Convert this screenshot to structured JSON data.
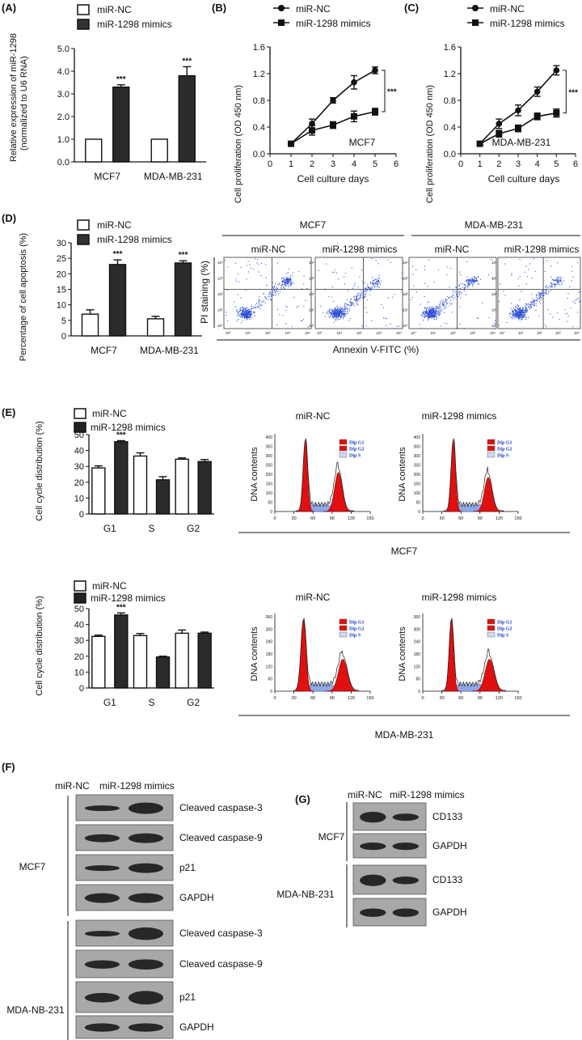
{
  "panels": {
    "A": {
      "label": "(A)"
    },
    "B": {
      "label": "(B)"
    },
    "C": {
      "label": "(C)"
    },
    "D": {
      "label": "(D)"
    },
    "E": {
      "label": "(E)"
    },
    "F": {
      "label": "(F)"
    },
    "G": {
      "label": "(G)"
    }
  },
  "legend": {
    "nc": "miR-NC",
    "mimics": "miR-1298 mimics"
  },
  "sig": "***",
  "flow": {
    "groups": [
      "MCF7",
      "MDA-MB-231"
    ],
    "conditions": [
      "miR-NC",
      "miR-1298 mimics",
      "miR-NC",
      "miR-1298 mimics"
    ],
    "ylabel": "PI staining (%)",
    "xlabel": "Annexin V-FITC (%)",
    "tick_labels": [
      "10°",
      "10¹",
      "10²",
      "10³",
      "10⁴"
    ]
  },
  "dna": {
    "ylabel": "DNA contents",
    "legend": [
      "Dip G1",
      "Dip G2",
      "Dip S"
    ],
    "titles": [
      "miR-NC",
      "miR-1298 mimics",
      "miR-NC",
      "miR-1298 mimics"
    ],
    "groups": [
      "MCF7",
      "MDA-MB-231"
    ],
    "xticks": [
      "0",
      "30",
      "60",
      "90",
      "120",
      "150"
    ],
    "yticks_mcf7": [
      "0",
      "50",
      "100",
      "150",
      "200",
      "250",
      "300",
      "350",
      "400"
    ],
    "yticks_mda": [
      "0",
      "60",
      "120",
      "180",
      "240",
      "300",
      "360"
    ]
  },
  "westernF": {
    "header": [
      "miR-NC",
      "miR-1298 mimics"
    ],
    "groups": [
      "MCF7",
      "MDA-NB-231"
    ],
    "bands": [
      "Cleaved caspase-3",
      "Cleaved caspase-9",
      "p21",
      "GAPDH",
      "Cleaved caspase-3",
      "Cleaved caspase-9",
      "p21",
      "GAPDH"
    ]
  },
  "westernG": {
    "header": [
      "miR-NC",
      "miR-1298 mimics"
    ],
    "groups": [
      "MCF7",
      "MDA-NB-231"
    ],
    "bands": [
      "CD133",
      "GAPDH",
      "CD133",
      "GAPDH"
    ]
  },
  "chart_data": [
    {
      "id": "A",
      "type": "bar",
      "ylabel": "Relative expression of miR-1298 (normalized to U6 RNA)",
      "ylabel_lines": [
        "Relative expression of miR-1298",
        "(normalized to U6 RNA)"
      ],
      "categories": [
        "MCF7",
        "MDA-MB-231"
      ],
      "series": [
        {
          "name": "miR-NC",
          "values": [
            1.0,
            1.0
          ],
          "errors": [
            0,
            0
          ]
        },
        {
          "name": "miR-1298 mimics",
          "values": [
            3.3,
            3.8
          ],
          "errors": [
            0.1,
            0.4
          ]
        }
      ],
      "ylim": [
        0,
        5
      ],
      "yticks": [
        "0.0",
        "1.0",
        "2.0",
        "3.0",
        "4.0",
        "5.0"
      ],
      "annotations": [
        "***",
        "***"
      ]
    },
    {
      "id": "B",
      "type": "line",
      "ylabel": "Cell proliferation (OD 450 nm)",
      "xlabel": "Cell culture days",
      "x": [
        1,
        2,
        3,
        4,
        5
      ],
      "series": [
        {
          "name": "miR-NC",
          "values": [
            0.15,
            0.45,
            0.8,
            1.07,
            1.25
          ],
          "errors": [
            0.02,
            0.07,
            0.04,
            0.1,
            0.05
          ]
        },
        {
          "name": "miR-1298 mimics",
          "values": [
            0.15,
            0.35,
            0.43,
            0.56,
            0.63
          ],
          "errors": [
            0.02,
            0.07,
            0.05,
            0.08,
            0.05
          ]
        }
      ],
      "xlim": [
        0,
        6
      ],
      "ylim": [
        0,
        1.6
      ],
      "xticks": [
        "0",
        "1",
        "2",
        "3",
        "4",
        "5",
        "6"
      ],
      "yticks": [
        "0.0",
        "0.4",
        "0.8",
        "1.2",
        "1.6"
      ],
      "annotation": "MCF7",
      "sig": "***"
    },
    {
      "id": "C",
      "type": "line",
      "ylabel": "Cell proliferation (OD 450 nm)",
      "xlabel": "Cell culture days",
      "x": [
        1,
        2,
        3,
        4,
        5
      ],
      "series": [
        {
          "name": "miR-NC",
          "values": [
            0.15,
            0.45,
            0.65,
            0.93,
            1.25
          ],
          "errors": [
            0.02,
            0.07,
            0.08,
            0.07,
            0.07
          ]
        },
        {
          "name": "miR-1298 mimics",
          "values": [
            0.15,
            0.3,
            0.38,
            0.56,
            0.61
          ],
          "errors": [
            0.02,
            0.05,
            0.05,
            0.05,
            0.06
          ]
        }
      ],
      "xlim": [
        0,
        6
      ],
      "ylim": [
        0,
        1.6
      ],
      "xticks": [
        "0",
        "1",
        "2",
        "3",
        "4",
        "5",
        "6"
      ],
      "yticks": [
        "0.0",
        "0.4",
        "0.8",
        "1.2",
        "1.6"
      ],
      "annotation": "MDA-MB-231",
      "sig": "***"
    },
    {
      "id": "D",
      "type": "bar",
      "ylabel": "Percentage of cell apoptosis (%)",
      "categories": [
        "MCF7",
        "MDA-MB-231"
      ],
      "series": [
        {
          "name": "miR-NC",
          "values": [
            7.0,
            5.5
          ],
          "errors": [
            1.4,
            0.8
          ]
        },
        {
          "name": "miR-1298 mimics",
          "values": [
            23.0,
            23.5
          ],
          "errors": [
            1.5,
            0.7
          ]
        }
      ],
      "ylim": [
        0,
        30
      ],
      "yticks": [
        "0",
        "5",
        "10",
        "15",
        "20",
        "25",
        "30"
      ],
      "annotations": [
        "***",
        "***"
      ]
    },
    {
      "id": "E-MCF7",
      "type": "bar",
      "ylabel": "Cell cycle distribution (%)",
      "categories": [
        "G1",
        "S",
        "G2"
      ],
      "series": [
        {
          "name": "miR-NC",
          "values": [
            29,
            36.5,
            34.5
          ],
          "errors": [
            1.3,
            2.0,
            0.8
          ]
        },
        {
          "name": "miR-1298 mimics",
          "values": [
            45.5,
            21.5,
            33
          ],
          "errors": [
            0.7,
            2.0,
            1.3
          ]
        }
      ],
      "ylim": [
        0,
        50
      ],
      "yticks": [
        "0",
        "10",
        "20",
        "30",
        "40",
        "50"
      ],
      "annotations": [
        "***",
        "",
        ""
      ]
    },
    {
      "id": "E-MDA",
      "type": "bar",
      "ylabel": "Cell cycle distribution (%)",
      "categories": [
        "G1",
        "S",
        "G2"
      ],
      "series": [
        {
          "name": "miR-NC",
          "values": [
            32.5,
            33,
            34.5
          ],
          "errors": [
            0.8,
            1.3,
            2.0
          ]
        },
        {
          "name": "miR-1298 mimics",
          "values": [
            46,
            19.5,
            34.5
          ],
          "errors": [
            1.3,
            0.5,
            0.7
          ]
        }
      ],
      "ylim": [
        0,
        50
      ],
      "yticks": [
        "0",
        "10",
        "20",
        "30",
        "40",
        "50"
      ],
      "annotations": [
        "***",
        "",
        ""
      ]
    }
  ]
}
